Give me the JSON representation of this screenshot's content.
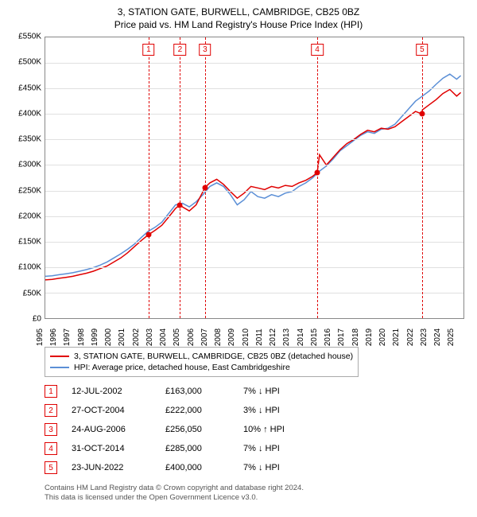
{
  "title": "3, STATION GATE, BURWELL, CAMBRIDGE, CB25 0BZ",
  "subtitle": "Price paid vs. HM Land Registry's House Price Index (HPI)",
  "chart": {
    "type": "line",
    "x_years": [
      1995,
      1996,
      1997,
      1998,
      1999,
      2000,
      2001,
      2002,
      2003,
      2004,
      2005,
      2006,
      2007,
      2008,
      2009,
      2010,
      2011,
      2012,
      2013,
      2014,
      2015,
      2016,
      2017,
      2018,
      2019,
      2020,
      2021,
      2022,
      2023,
      2024,
      2025
    ],
    "xlim": [
      1995,
      2025.5
    ],
    "ylim": [
      0,
      550000
    ],
    "ytick_step": 50000,
    "yticks": [
      "£0",
      "£50K",
      "£100K",
      "£150K",
      "£200K",
      "£250K",
      "£300K",
      "£350K",
      "£400K",
      "£450K",
      "£500K",
      "£550K"
    ],
    "grid_color": "#e0e0e0",
    "border_color": "#888888",
    "background_color": "#ffffff",
    "series": [
      {
        "name": "property",
        "label": "3, STATION GATE, BURWELL, CAMBRIDGE, CB25 0BZ (detached house)",
        "color": "#e00000",
        "line_width": 1.5,
        "points": [
          [
            1995.0,
            75000
          ],
          [
            1995.5,
            76000
          ],
          [
            1996.0,
            78000
          ],
          [
            1996.5,
            80000
          ],
          [
            1997.0,
            82000
          ],
          [
            1997.5,
            85000
          ],
          [
            1998.0,
            88000
          ],
          [
            1998.5,
            92000
          ],
          [
            1999.0,
            97000
          ],
          [
            1999.5,
            102000
          ],
          [
            2000.0,
            110000
          ],
          [
            2000.5,
            118000
          ],
          [
            2001.0,
            128000
          ],
          [
            2001.5,
            140000
          ],
          [
            2002.0,
            152000
          ],
          [
            2002.5,
            163000
          ],
          [
            2003.0,
            172000
          ],
          [
            2003.5,
            182000
          ],
          [
            2004.0,
            198000
          ],
          [
            2004.5,
            215000
          ],
          [
            2004.83,
            222000
          ],
          [
            2005.0,
            218000
          ],
          [
            2005.5,
            210000
          ],
          [
            2006.0,
            222000
          ],
          [
            2006.5,
            248000
          ],
          [
            2006.65,
            256050
          ],
          [
            2007.0,
            265000
          ],
          [
            2007.5,
            272000
          ],
          [
            2008.0,
            262000
          ],
          [
            2008.5,
            248000
          ],
          [
            2009.0,
            235000
          ],
          [
            2009.5,
            245000
          ],
          [
            2010.0,
            258000
          ],
          [
            2010.5,
            255000
          ],
          [
            2011.0,
            252000
          ],
          [
            2011.5,
            258000
          ],
          [
            2012.0,
            255000
          ],
          [
            2012.5,
            260000
          ],
          [
            2013.0,
            258000
          ],
          [
            2013.5,
            265000
          ],
          [
            2014.0,
            270000
          ],
          [
            2014.5,
            278000
          ],
          [
            2014.83,
            285000
          ],
          [
            2015.0,
            320000
          ],
          [
            2015.5,
            300000
          ],
          [
            2016.0,
            315000
          ],
          [
            2016.5,
            330000
          ],
          [
            2017.0,
            342000
          ],
          [
            2017.5,
            350000
          ],
          [
            2018.0,
            360000
          ],
          [
            2018.5,
            368000
          ],
          [
            2019.0,
            365000
          ],
          [
            2019.5,
            372000
          ],
          [
            2020.0,
            370000
          ],
          [
            2020.5,
            375000
          ],
          [
            2021.0,
            385000
          ],
          [
            2021.5,
            395000
          ],
          [
            2022.0,
            405000
          ],
          [
            2022.48,
            400000
          ],
          [
            2022.5,
            408000
          ],
          [
            2023.0,
            418000
          ],
          [
            2023.5,
            428000
          ],
          [
            2024.0,
            440000
          ],
          [
            2024.5,
            448000
          ],
          [
            2025.0,
            435000
          ],
          [
            2025.3,
            442000
          ]
        ]
      },
      {
        "name": "hpi",
        "label": "HPI: Average price, detached house, East Cambridgeshire",
        "color": "#5b8fd6",
        "line_width": 1.5,
        "points": [
          [
            1995.0,
            82000
          ],
          [
            1995.5,
            83000
          ],
          [
            1996.0,
            85000
          ],
          [
            1996.5,
            87000
          ],
          [
            1997.0,
            89000
          ],
          [
            1997.5,
            92000
          ],
          [
            1998.0,
            95000
          ],
          [
            1998.5,
            99000
          ],
          [
            1999.0,
            104000
          ],
          [
            1999.5,
            110000
          ],
          [
            2000.0,
            118000
          ],
          [
            2000.5,
            126000
          ],
          [
            2001.0,
            135000
          ],
          [
            2001.5,
            145000
          ],
          [
            2002.0,
            158000
          ],
          [
            2002.5,
            170000
          ],
          [
            2003.0,
            178000
          ],
          [
            2003.5,
            188000
          ],
          [
            2004.0,
            205000
          ],
          [
            2004.5,
            222000
          ],
          [
            2005.0,
            225000
          ],
          [
            2005.5,
            218000
          ],
          [
            2006.0,
            228000
          ],
          [
            2006.5,
            242000
          ],
          [
            2007.0,
            258000
          ],
          [
            2007.5,
            265000
          ],
          [
            2008.0,
            258000
          ],
          [
            2008.5,
            242000
          ],
          [
            2009.0,
            222000
          ],
          [
            2009.5,
            232000
          ],
          [
            2010.0,
            248000
          ],
          [
            2010.5,
            238000
          ],
          [
            2011.0,
            235000
          ],
          [
            2011.5,
            242000
          ],
          [
            2012.0,
            238000
          ],
          [
            2012.5,
            245000
          ],
          [
            2013.0,
            248000
          ],
          [
            2013.5,
            258000
          ],
          [
            2014.0,
            265000
          ],
          [
            2014.5,
            275000
          ],
          [
            2015.0,
            288000
          ],
          [
            2015.5,
            298000
          ],
          [
            2016.0,
            312000
          ],
          [
            2016.5,
            328000
          ],
          [
            2017.0,
            338000
          ],
          [
            2017.5,
            348000
          ],
          [
            2018.0,
            358000
          ],
          [
            2018.5,
            365000
          ],
          [
            2019.0,
            362000
          ],
          [
            2019.5,
            370000
          ],
          [
            2020.0,
            372000
          ],
          [
            2020.5,
            380000
          ],
          [
            2021.0,
            395000
          ],
          [
            2021.5,
            410000
          ],
          [
            2022.0,
            425000
          ],
          [
            2022.5,
            435000
          ],
          [
            2023.0,
            445000
          ],
          [
            2023.5,
            458000
          ],
          [
            2024.0,
            470000
          ],
          [
            2024.5,
            478000
          ],
          [
            2025.0,
            468000
          ],
          [
            2025.3,
            475000
          ]
        ]
      }
    ],
    "markers": [
      {
        "n": "1",
        "x": 2002.53,
        "y": 163000
      },
      {
        "n": "2",
        "x": 2004.82,
        "y": 222000
      },
      {
        "n": "3",
        "x": 2006.65,
        "y": 256050
      },
      {
        "n": "4",
        "x": 2014.83,
        "y": 285000
      },
      {
        "n": "5",
        "x": 2022.48,
        "y": 400000
      }
    ],
    "marker_color": "#e00000",
    "title_fontsize": 12,
    "label_fontsize": 10
  },
  "legend": {
    "items": [
      {
        "color": "#e00000",
        "label": "3, STATION GATE, BURWELL, CAMBRIDGE, CB25 0BZ (detached house)"
      },
      {
        "color": "#5b8fd6",
        "label": "HPI: Average price, detached house, East Cambridgeshire"
      }
    ]
  },
  "events": [
    {
      "n": "1",
      "date": "12-JUL-2002",
      "price": "£163,000",
      "hpi": "7% ↓ HPI"
    },
    {
      "n": "2",
      "date": "27-OCT-2004",
      "price": "£222,000",
      "hpi": "3% ↓ HPI"
    },
    {
      "n": "3",
      "date": "24-AUG-2006",
      "price": "£256,050",
      "hpi": "10% ↑ HPI"
    },
    {
      "n": "4",
      "date": "31-OCT-2014",
      "price": "£285,000",
      "hpi": "7% ↓ HPI"
    },
    {
      "n": "5",
      "date": "23-JUN-2022",
      "price": "£400,000",
      "hpi": "7% ↓ HPI"
    }
  ],
  "footer1": "Contains HM Land Registry data © Crown copyright and database right 2024.",
  "footer2": "This data is licensed under the Open Government Licence v3.0."
}
